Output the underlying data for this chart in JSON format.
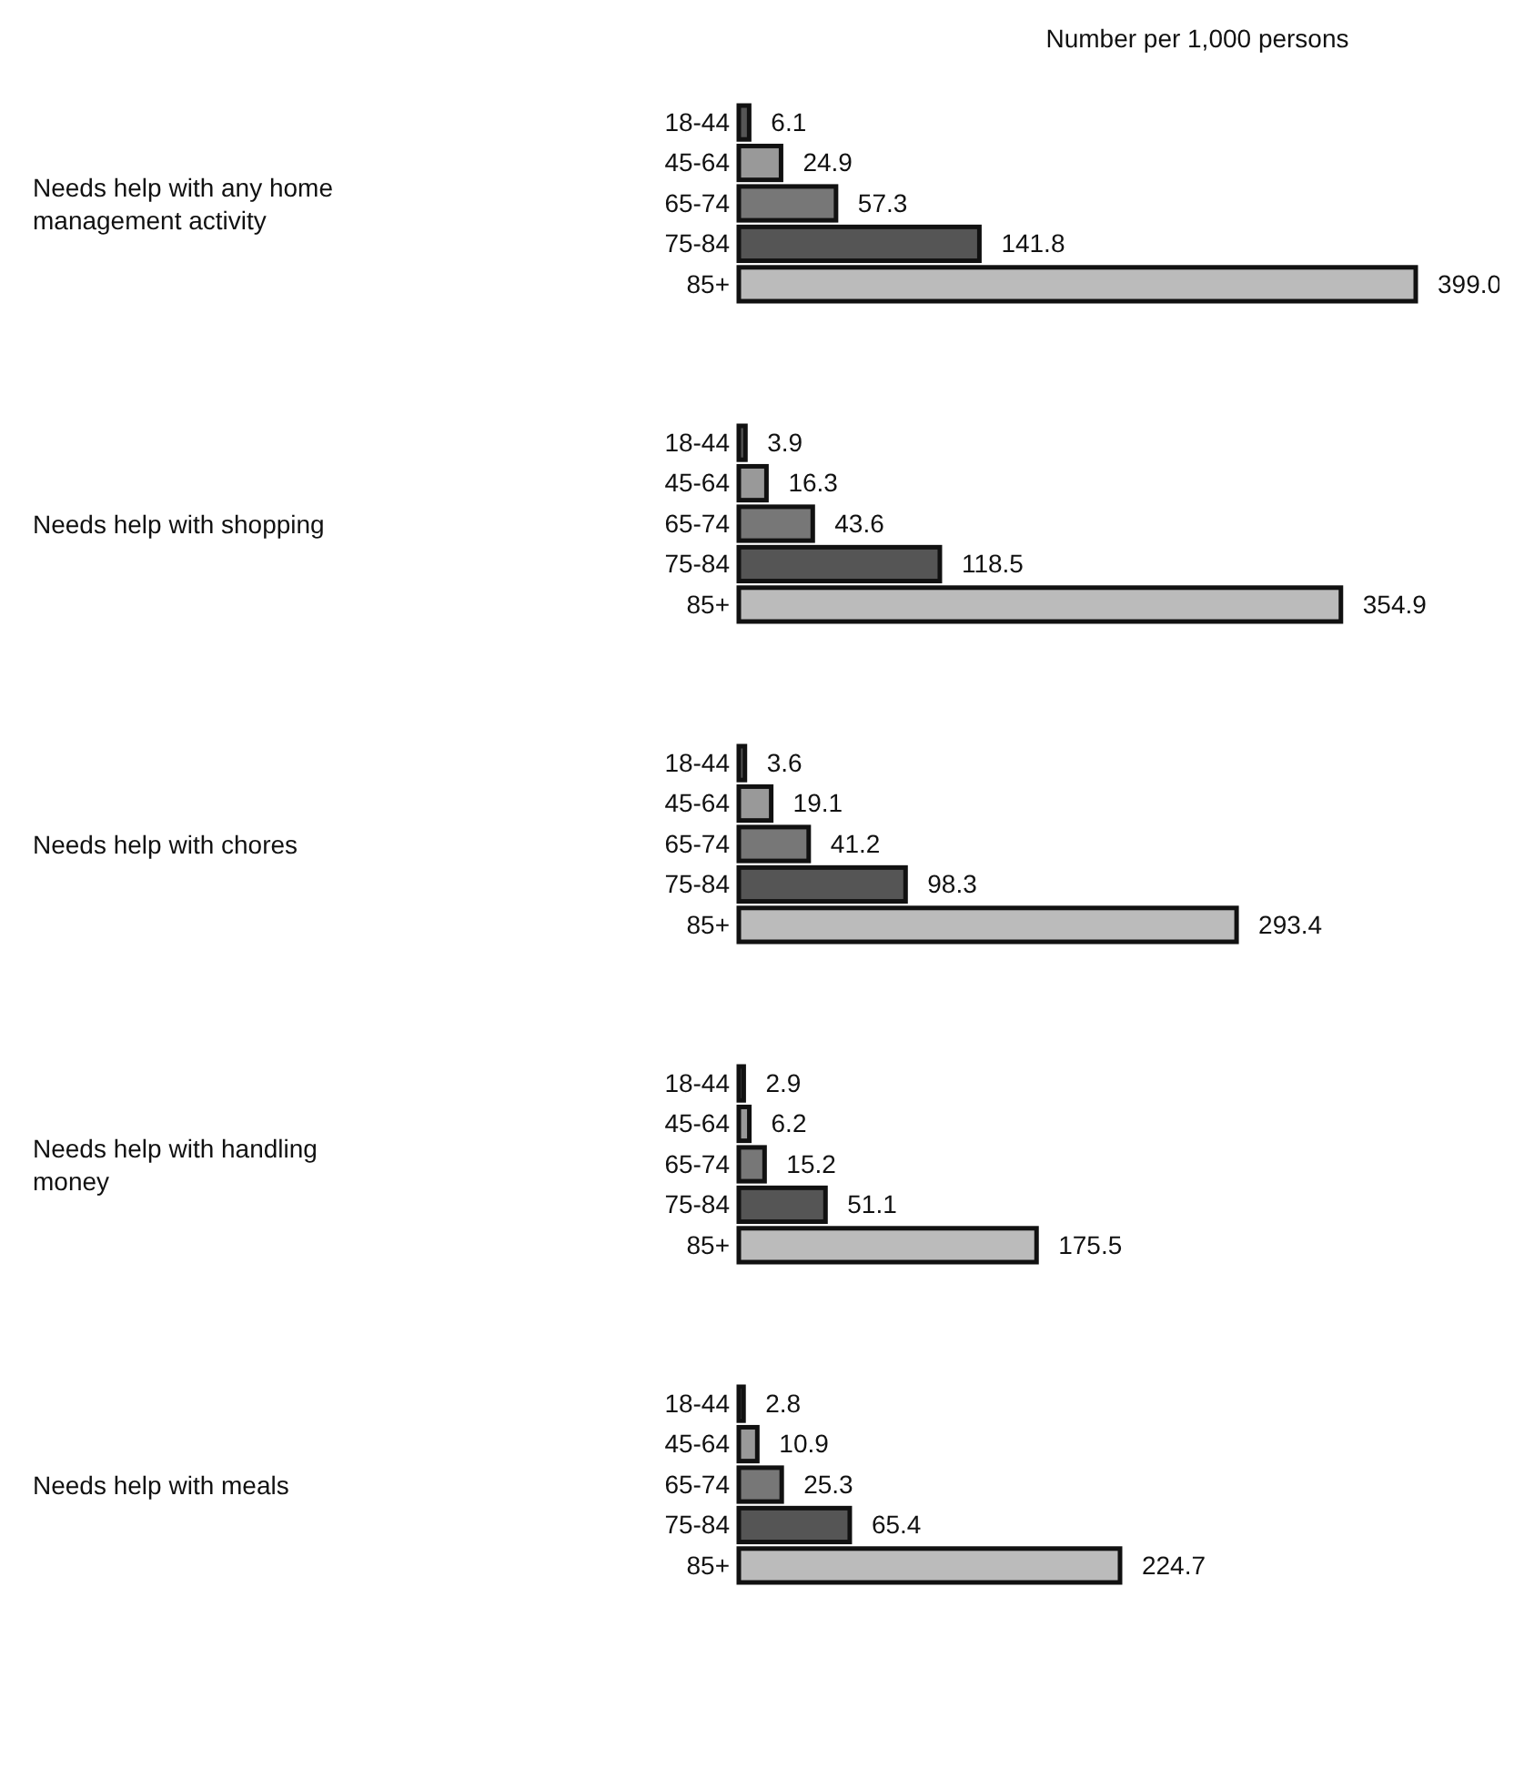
{
  "chart_data": [
    {
      "type": "bar",
      "orientation": "horizontal",
      "ylabel": "Needs help with any home management activity",
      "annotations": [
        "Number per 1,000 persons"
      ],
      "categories": [
        "18-44",
        "45-64",
        "65-74",
        "75-84",
        "85+"
      ],
      "values": [
        6.1,
        24.9,
        57.3,
        141.8,
        399.0
      ],
      "value_labels": [
        "6.1",
        "24.9",
        "57.3",
        "141.8",
        "399.0"
      ],
      "colors": [
        "#555555",
        "#999999",
        "#777777",
        "#555555",
        "#bbbbbb"
      ]
    },
    {
      "type": "bar",
      "orientation": "horizontal",
      "ylabel": "Needs help with shopping",
      "categories": [
        "18-44",
        "45-64",
        "65-74",
        "75-84",
        "85+"
      ],
      "values": [
        3.9,
        16.3,
        43.6,
        118.5,
        354.9
      ],
      "value_labels": [
        "3.9",
        "16.3",
        "43.6",
        "118.5",
        "354.9"
      ],
      "colors": [
        "#555555",
        "#999999",
        "#777777",
        "#555555",
        "#bbbbbb"
      ]
    },
    {
      "type": "bar",
      "orientation": "horizontal",
      "ylabel": "Needs help with chores",
      "categories": [
        "18-44",
        "45-64",
        "65-74",
        "75-84",
        "85+"
      ],
      "values": [
        3.6,
        19.1,
        41.2,
        98.3,
        293.4
      ],
      "value_labels": [
        "3.6",
        "19.1",
        "41.2",
        "98.3",
        "293.4"
      ],
      "colors": [
        "#555555",
        "#999999",
        "#777777",
        "#555555",
        "#bbbbbb"
      ]
    },
    {
      "type": "bar",
      "orientation": "horizontal",
      "ylabel": "Needs help with handling money",
      "categories": [
        "18-44",
        "45-64",
        "65-74",
        "75-84",
        "85+"
      ],
      "values": [
        2.9,
        6.2,
        15.2,
        51.1,
        175.5
      ],
      "value_labels": [
        "2.9",
        "6.2",
        "15.2",
        "51.1",
        "175.5"
      ],
      "colors": [
        "#555555",
        "#999999",
        "#777777",
        "#555555",
        "#bbbbbb"
      ]
    },
    {
      "type": "bar",
      "orientation": "horizontal",
      "ylabel": "Needs help with meals",
      "categories": [
        "18-44",
        "45-64",
        "65-74",
        "75-84",
        "85+"
      ],
      "values": [
        2.8,
        10.9,
        25.3,
        65.4,
        224.7
      ],
      "value_labels": [
        "2.8",
        "10.9",
        "25.3",
        "65.4",
        "224.7"
      ],
      "colors": [
        "#555555",
        "#999999",
        "#777777",
        "#555555",
        "#bbbbbb"
      ]
    }
  ]
}
